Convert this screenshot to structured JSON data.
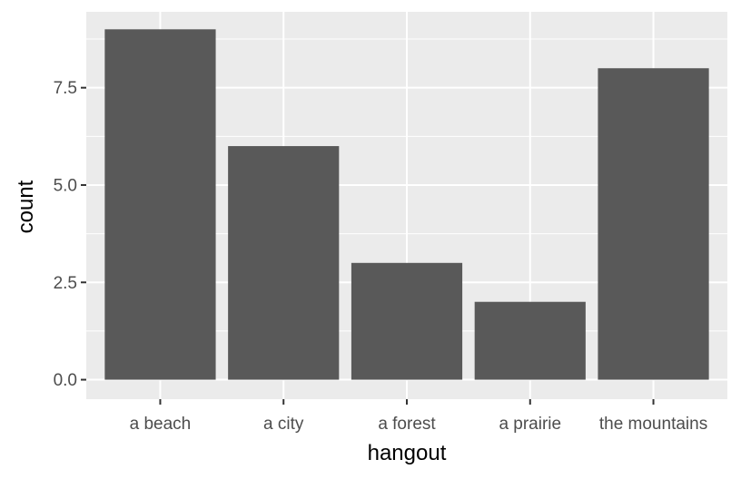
{
  "chart_data": {
    "type": "bar",
    "categories": [
      "a beach",
      "a city",
      "a forest",
      "a prairie",
      "the mountains"
    ],
    "values": [
      9,
      6,
      3,
      2,
      8
    ],
    "title": "",
    "xlabel": "hangout",
    "ylabel": "count",
    "ylim": [
      -0.5,
      9.45
    ],
    "yticks": [
      0,
      2.5,
      5,
      7.5
    ],
    "ytick_labels": [
      "0.0",
      "2.5",
      "5.0",
      "7.5"
    ],
    "grid": true,
    "colors": {
      "panel": "#ebebeb",
      "grid": "#ffffff",
      "bar": "#595959",
      "tick_text": "#4d4d4d",
      "tick_mark": "#333333"
    }
  }
}
